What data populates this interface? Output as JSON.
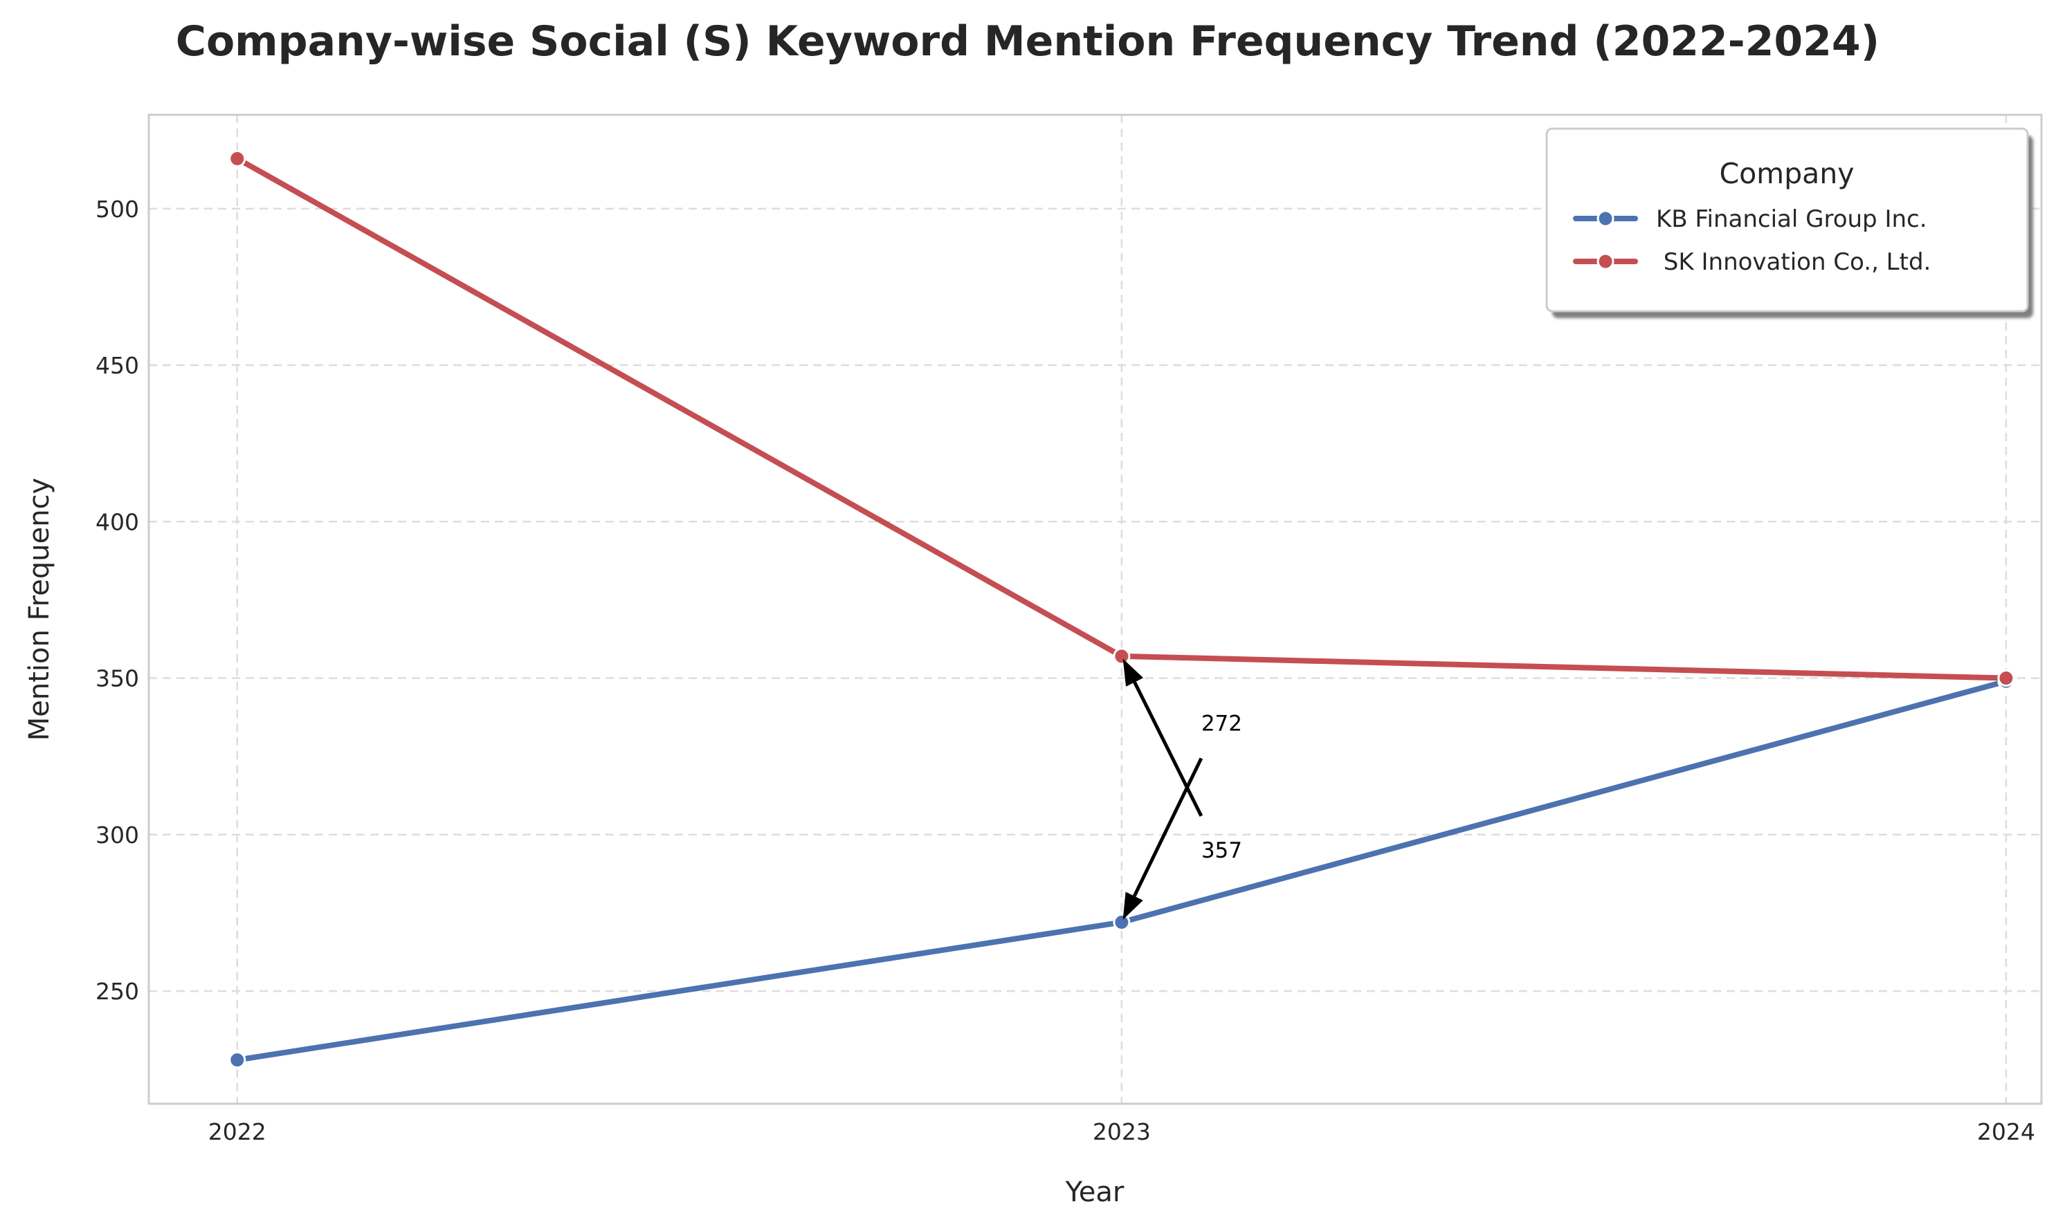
{
  "chart_data": {
    "type": "line",
    "title": "Company-wise Social (S) Keyword Mention Frequency Trend (2022-2024)",
    "xlabel": "Year",
    "ylabel": "Mention Frequency",
    "x": [
      2022,
      2023,
      2024
    ],
    "x_tick_labels": [
      "2022",
      "2023",
      "2024"
    ],
    "y_ticks": [
      250,
      300,
      350,
      400,
      450,
      500
    ],
    "y_tick_labels": [
      "250",
      "300",
      "350",
      "400",
      "450",
      "500"
    ],
    "xlim": [
      2021.9,
      2024.04
    ],
    "ylim": [
      214,
      530
    ],
    "grid": true,
    "legend": {
      "title": "Company",
      "placement": "top-right"
    },
    "series": [
      {
        "name": "KB Financial Group Inc.",
        "color": "#4c72b0",
        "values": [
          228,
          272,
          349
        ]
      },
      {
        "name": " SK Innovation Co., Ltd.",
        "color": "#c44e52",
        "values": [
          516,
          357,
          350
        ]
      }
    ],
    "annotations": [
      {
        "text": "272",
        "point": [
          2023,
          272
        ]
      },
      {
        "text": "357",
        "point": [
          2023,
          357
        ]
      }
    ]
  }
}
